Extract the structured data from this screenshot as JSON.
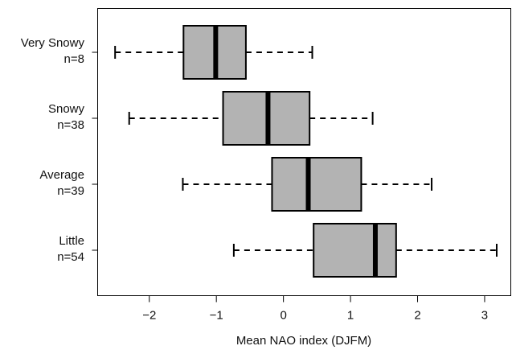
{
  "chart_data": {
    "type": "boxplot",
    "orientation": "horizontal",
    "x_label": "Mean NAO index (DJFM)",
    "categories": [
      "Very Snowy",
      "Snowy",
      "Average",
      "Little"
    ],
    "n_labels": [
      "n=8",
      "n=38",
      "n=39",
      "n=54"
    ],
    "low": [
      -2.51,
      -2.3,
      -1.5,
      -0.74
    ],
    "q1": [
      -1.49,
      -0.9,
      -0.17,
      0.45
    ],
    "median": [
      -1.01,
      -0.23,
      0.37,
      1.37
    ],
    "q3": [
      -0.56,
      0.39,
      1.16,
      1.68
    ],
    "high": [
      0.43,
      1.33,
      2.21,
      3.18
    ],
    "color": "#b3b3b3",
    "xlim": [
      -2.77,
      3.39
    ],
    "xticks": [
      {
        "value": -2,
        "label": "−2"
      },
      {
        "value": -1,
        "label": "−1"
      },
      0,
      1,
      2,
      3
    ]
  }
}
